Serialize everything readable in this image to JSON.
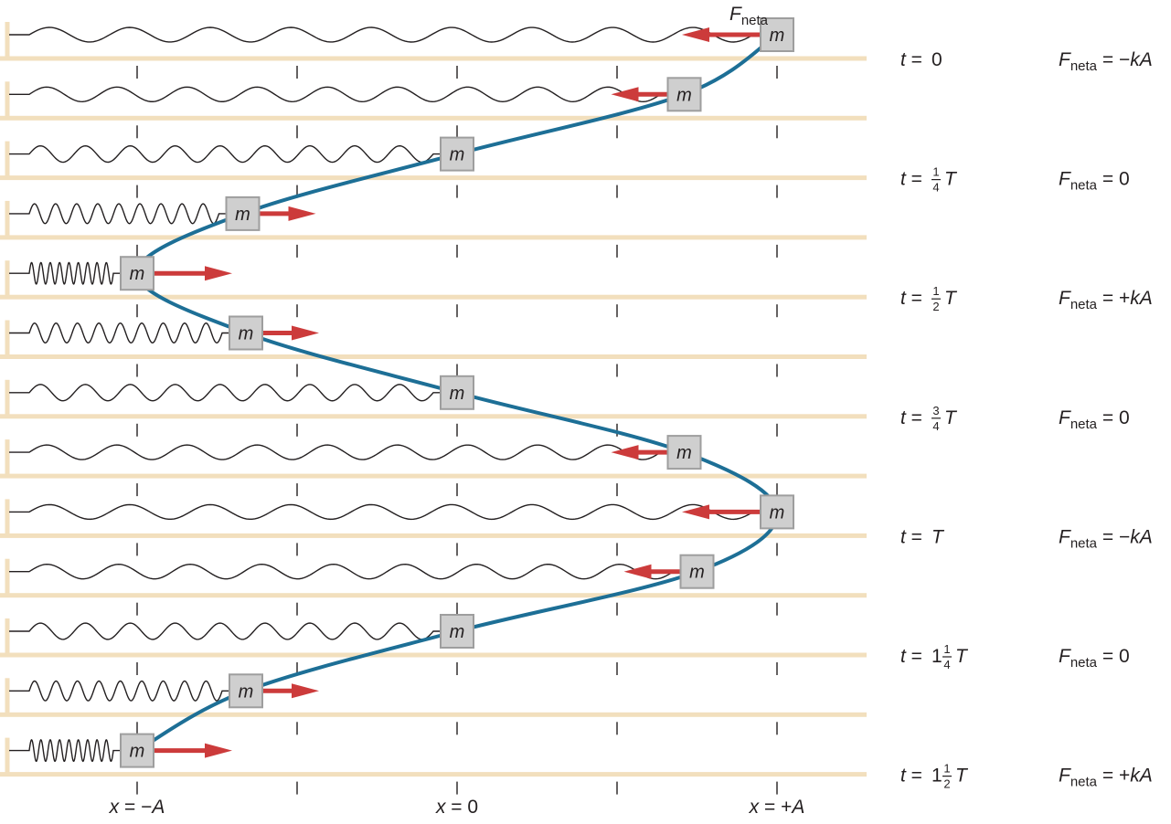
{
  "colors": {
    "track": "#f2dfbd",
    "wall": "#f2dfbd",
    "spring": "#231f20",
    "block_fill": "#cfcfcf",
    "block_stroke": "#9e9e9e",
    "arrow": "#cc3b3b",
    "curve": "#1d6f96",
    "tick": "#231f20"
  },
  "block_label": "m",
  "force_label": {
    "symbol": "F",
    "subscript": "neta"
  },
  "axis_labels": {
    "left": "x = −A",
    "center": "x = 0",
    "right": "x = +A"
  },
  "rows": [
    {
      "x": 1.0,
      "arrow": "left",
      "arrow_len": 0.86
    },
    {
      "x": 0.71,
      "arrow": "left",
      "arrow_len": 0.62
    },
    {
      "x": 0.0,
      "arrow": "none",
      "arrow_len": 0
    },
    {
      "x": -0.67,
      "arrow": "right",
      "arrow_len": 0.62
    },
    {
      "x": -1.0,
      "arrow": "right",
      "arrow_len": 0.86
    },
    {
      "x": -0.66,
      "arrow": "right",
      "arrow_len": 0.62
    },
    {
      "x": 0.0,
      "arrow": "none",
      "arrow_len": 0
    },
    {
      "x": 0.71,
      "arrow": "left",
      "arrow_len": 0.62
    },
    {
      "x": 1.0,
      "arrow": "left",
      "arrow_len": 0.86
    },
    {
      "x": 0.75,
      "arrow": "left",
      "arrow_len": 0.62
    },
    {
      "x": 0.0,
      "arrow": "none",
      "arrow_len": 0
    },
    {
      "x": -0.66,
      "arrow": "right",
      "arrow_len": 0.62
    },
    {
      "x": -1.0,
      "arrow": "right",
      "arrow_len": 0.86
    }
  ],
  "time_labels": [
    {
      "row": 0,
      "prefix": "t = ",
      "whole": "0",
      "num": "",
      "den": "",
      "suffix": ""
    },
    {
      "row": 2,
      "prefix": "t = ",
      "whole": "",
      "num": "1",
      "den": "4",
      "suffix": "T"
    },
    {
      "row": 4,
      "prefix": "t = ",
      "whole": "",
      "num": "1",
      "den": "2",
      "suffix": "T"
    },
    {
      "row": 6,
      "prefix": "t = ",
      "whole": "",
      "num": "3",
      "den": "4",
      "suffix": "T"
    },
    {
      "row": 8,
      "prefix": "t = ",
      "whole": "",
      "num": "",
      "den": "",
      "suffix": "T"
    },
    {
      "row": 10,
      "prefix": "t = ",
      "whole": "1",
      "num": "1",
      "den": "4",
      "suffix": "T"
    },
    {
      "row": 12,
      "prefix": "t = ",
      "whole": "1",
      "num": "1",
      "den": "2",
      "suffix": "T"
    }
  ],
  "force_values": [
    {
      "row": 0,
      "value": " = −kA"
    },
    {
      "row": 2,
      "value": " = 0"
    },
    {
      "row": 4,
      "value": " = +kA"
    },
    {
      "row": 6,
      "value": " = 0"
    },
    {
      "row": 8,
      "value": " = −kA"
    },
    {
      "row": 10,
      "value": " = 0"
    },
    {
      "row": 12,
      "value": " = +kA"
    }
  ]
}
